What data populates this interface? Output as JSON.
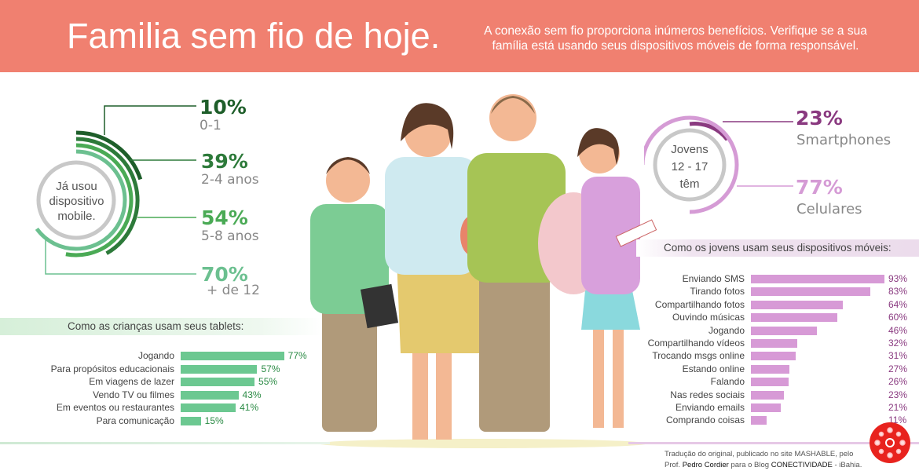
{
  "header": {
    "title": "Familia sem fio de hoje.",
    "subtitle": "A conexão sem fio proporciona inúmeros benefícios. Verifique se a sua família está usando seus dispositivos móveis de forma responsável."
  },
  "colors": {
    "header": "#f08070",
    "green_dark": "#1e5e2a",
    "green": "#4aaa55",
    "green_light": "#6cc090",
    "purple": "#8a3a80",
    "lavender": "#d59bd5"
  },
  "chart_data": [
    {
      "type": "radial",
      "title": "Já usou dispositivo mobile.",
      "categories": [
        "0-1",
        "2-4 anos",
        "5-8 anos",
        "+ de 12"
      ],
      "values": [
        10,
        39,
        54,
        70
      ],
      "labels": [
        "10%",
        "39%",
        "54%",
        "70%"
      ]
    },
    {
      "type": "radial",
      "title": "Jovens 12 - 17 têm",
      "title_lines": [
        "Jovens",
        "12 - 17",
        "têm"
      ],
      "categories": [
        "Smartphones",
        "Celulares"
      ],
      "values": [
        23,
        77
      ],
      "labels": [
        "23%",
        "77%"
      ]
    },
    {
      "type": "bar",
      "orientation": "horizontal",
      "title": "Como as crianças usam seus tablets:",
      "categories": [
        "Jogando",
        "Para propósitos educacionais",
        "Em viagens de lazer",
        "Vendo TV ou filmes",
        "Em eventos ou restaurantes",
        "Para comunicação"
      ],
      "values": [
        77,
        57,
        55,
        43,
        41,
        15
      ],
      "labels": [
        "77%",
        "57%",
        "55%",
        "43%",
        "41%",
        "15%"
      ],
      "xlim": [
        0,
        100
      ]
    },
    {
      "type": "bar",
      "orientation": "horizontal",
      "title": "Como os jovens usam seus dispositivos móveis:",
      "categories": [
        "Enviando SMS",
        "Tirando fotos",
        "Compartilhando fotos",
        "Ouvindo músicas",
        "Jogando",
        "Compartilhando vídeos",
        "Trocando msgs online",
        "Estando online",
        "Falando",
        "Nas redes sociais",
        "Enviando emails",
        "Comprando coisas"
      ],
      "values": [
        93,
        83,
        64,
        60,
        46,
        32,
        31,
        27,
        26,
        23,
        21,
        11
      ],
      "labels": [
        "93%",
        "83%",
        "64%",
        "60%",
        "46%",
        "32%",
        "31%",
        "27%",
        "26%",
        "23%",
        "21%",
        "11%"
      ],
      "xlim": [
        0,
        100
      ]
    }
  ],
  "credit": {
    "line1": "Tradução do original, publicado no site MASHABLE, pelo",
    "prefix": "Prof.",
    "author": "Pedro Cordier",
    "mid": "para o Blog",
    "blog": "CONECTIVIDADE",
    "suffix": "- iBahia."
  }
}
